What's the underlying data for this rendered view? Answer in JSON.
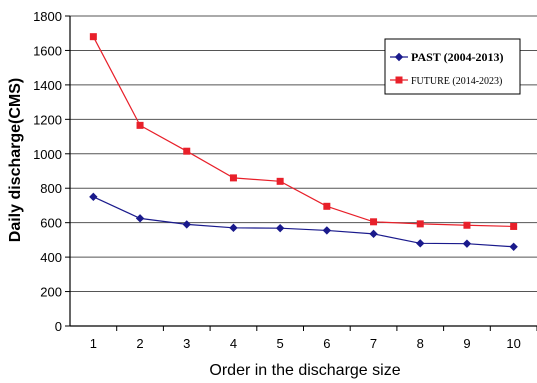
{
  "chart_data": {
    "type": "line",
    "xlabel": "Order in the discharge size",
    "ylabel": "Daily discharge(CMS)",
    "categories": [
      1,
      2,
      3,
      4,
      5,
      6,
      7,
      8,
      9,
      10
    ],
    "ylim": [
      0,
      1800
    ],
    "yticks": [
      0,
      200,
      400,
      600,
      800,
      1000,
      1200,
      1400,
      1600,
      1800
    ],
    "grid": true,
    "legend_position": "top-right",
    "series": [
      {
        "name": "PAST (2004-2013)",
        "color": "#1a1a8c",
        "marker": "diamond",
        "values": [
          750,
          625,
          590,
          570,
          568,
          555,
          535,
          480,
          478,
          460
        ]
      },
      {
        "name": "FUTURE (2014-2023)",
        "color": "#e8202a",
        "marker": "square",
        "values": [
          1680,
          1165,
          1015,
          860,
          840,
          695,
          605,
          593,
          585,
          578
        ]
      }
    ]
  }
}
